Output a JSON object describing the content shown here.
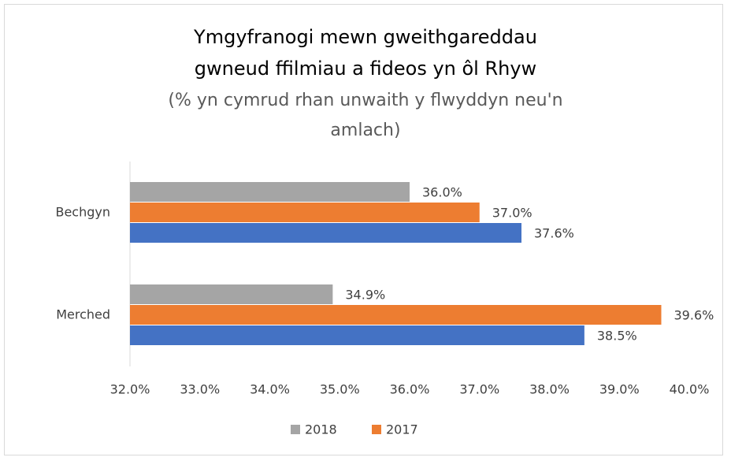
{
  "chart_data": {
    "type": "bar",
    "orientation": "horizontal",
    "title": [
      "Ymgyfranogi mewn gweithgareddau",
      "gwneud ffilmiau a fideos yn ôl Rhyw"
    ],
    "subtitle": [
      "(% yn cymrud rhan unwaith y flwyddyn neu'n",
      "amlach)"
    ],
    "categories": [
      "Bechgyn",
      "Merched"
    ],
    "series": [
      {
        "name": "2018",
        "color": "#a5a5a5",
        "values": [
          36.0,
          34.9
        ],
        "value_labels": [
          "36.0%",
          "34.9%"
        ]
      },
      {
        "name": "2017",
        "color": "#ed7d31",
        "values": [
          37.0,
          39.6
        ],
        "value_labels": [
          "37.0%",
          "39.6%"
        ]
      },
      {
        "color": "#4472c4",
        "values": [
          37.6,
          38.5
        ],
        "value_labels": [
          "37.6%",
          "38.5%"
        ]
      }
    ],
    "xlim": [
      32,
      40
    ],
    "xticks": [
      {
        "value": 32,
        "label": "32.0%"
      },
      {
        "value": 33,
        "label": "33.0%"
      },
      {
        "value": 34,
        "label": "34.0%"
      },
      {
        "value": 35,
        "label": "35.0%"
      },
      {
        "value": 36,
        "label": "36.0%"
      },
      {
        "value": 37,
        "label": "37.0%"
      },
      {
        "value": 38,
        "label": "38.0%"
      },
      {
        "value": 39,
        "label": "39.0%"
      },
      {
        "value": 40,
        "label": "40.0%"
      }
    ],
    "legend": "bottom"
  }
}
